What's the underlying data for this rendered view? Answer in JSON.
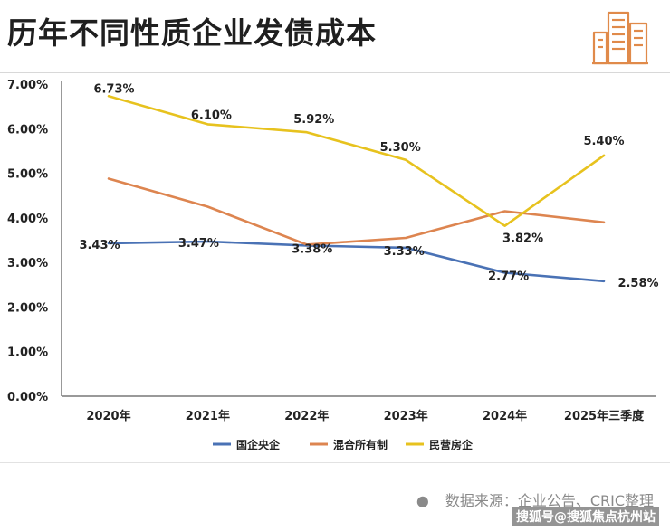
{
  "title": "历年不同性质企业发债成本",
  "source_text": "数据来源：企业公告、CRIC整理",
  "watermark_text": "搜狐号@搜狐焦点杭州站",
  "logo_icon": "city-buildings-icon",
  "colors": {
    "soe": "#4a72b5",
    "mixed": "#dd8550",
    "private": "#e7c21e",
    "axis": "#333333",
    "grid": "#e9e9e9"
  },
  "chart_data": {
    "type": "line",
    "categories": [
      "2020年",
      "2021年",
      "2022年",
      "2023年",
      "2024年",
      "2025年三季度"
    ],
    "ylim": [
      0,
      7
    ],
    "y_ticks": [
      "0.00%",
      "1.00%",
      "2.00%",
      "3.00%",
      "4.00%",
      "5.00%",
      "6.00%",
      "7.00%"
    ],
    "legend_position": "bottom",
    "series": [
      {
        "name": "国企央企",
        "color": "#4a72b5",
        "values": [
          3.43,
          3.47,
          3.38,
          3.33,
          2.77,
          2.58
        ],
        "labels": [
          "3.43%",
          "3.47%",
          "3.38%",
          "3.33%",
          "2.77%",
          "2.58%"
        ]
      },
      {
        "name": "混合所有制",
        "color": "#dd8550",
        "values": [
          4.88,
          4.25,
          3.4,
          3.55,
          4.15,
          3.9
        ],
        "labels": [
          "",
          "",
          "",
          "",
          "",
          ""
        ]
      },
      {
        "name": "民营房企",
        "color": "#e7c21e",
        "values": [
          6.73,
          6.1,
          5.92,
          5.3,
          3.82,
          5.4
        ],
        "labels": [
          "6.73%",
          "6.10%",
          "5.92%",
          "5.30%",
          "3.82%",
          "5.40%"
        ]
      }
    ]
  }
}
